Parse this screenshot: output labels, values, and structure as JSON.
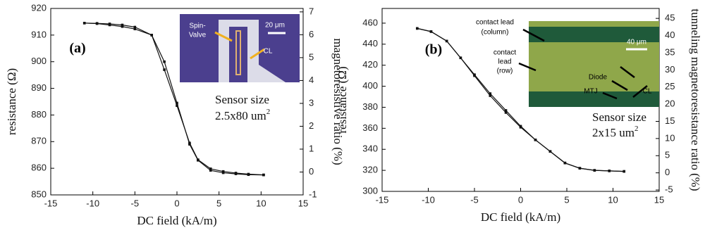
{
  "chart_data": [
    {
      "type": "line",
      "panel": "(a)",
      "xlabel": "DC field (kA/m)",
      "ylabel": "resistance (Ω)",
      "y2label": "magnetoresistive ratio (%)",
      "x": [
        -11,
        -9.5,
        -8,
        -6.5,
        -5,
        -3,
        -1.5,
        0,
        1.5,
        2.5,
        4,
        5.5,
        7,
        8.5,
        10.3
      ],
      "series": [
        {
          "color": "#111111",
          "values": [
            914.5,
            914.4,
            914.2,
            913.8,
            913.0,
            910.0,
            897.0,
            883.5,
            869.5,
            863.2,
            859.8,
            858.8,
            858.2,
            857.8,
            857.5
          ]
        },
        {
          "color": "#111111",
          "values": [
            914.5,
            914.3,
            913.8,
            913.2,
            912.3,
            910.0,
            900.0,
            884.5,
            869.0,
            863.0,
            859.2,
            858.3,
            857.9,
            857.6,
            857.5
          ]
        }
      ],
      "xlim": [
        -15,
        15
      ],
      "xticks": [
        -15,
        -10,
        -5,
        0,
        5,
        10,
        15
      ],
      "ylim": [
        850,
        920
      ],
      "yticks": [
        850,
        860,
        870,
        880,
        890,
        900,
        910,
        920
      ],
      "y2lim": [
        -1,
        7.15
      ],
      "y2ticks": [
        -1,
        0,
        1,
        2,
        3,
        4,
        5,
        6,
        7
      ],
      "inset_labels": [
        "Spin-",
        "Valve",
        "20 μm",
        "CL"
      ],
      "sensor_size": [
        "Sensor size",
        "2.5x80 um",
        "2"
      ]
    },
    {
      "type": "line",
      "panel": "(b)",
      "xlabel": "DC field (kA/m)",
      "ylabel": "resistance (Ω)",
      "y2label": "tunneling magnetoresistance ratio (%)",
      "x": [
        -11.2,
        -9.7,
        -8,
        -6.5,
        -5,
        -3.3,
        -1.6,
        0,
        1.6,
        3.2,
        4.8,
        6.4,
        8,
        9.6,
        11.2
      ],
      "series": [
        {
          "color": "#111111",
          "values": [
            455,
            452,
            443,
            427,
            411,
            393,
            377,
            362,
            349,
            338,
            327,
            322,
            320,
            319.5,
            319
          ]
        },
        {
          "color": "#111111",
          "values": [
            455,
            452,
            443,
            427,
            410,
            391,
            375,
            361,
            349,
            338,
            327,
            322,
            320,
            319.5,
            319
          ]
        }
      ],
      "xlim": [
        -15,
        15
      ],
      "xticks": [
        -15,
        -10,
        -5,
        0,
        5,
        10,
        15
      ],
      "ylim": [
        300,
        474
      ],
      "yticks": [
        300,
        320,
        340,
        360,
        380,
        400,
        420,
        440,
        460
      ],
      "y2lim": [
        -5.4,
        47.9
      ],
      "y2ticks": [
        -5,
        0,
        5,
        10,
        15,
        20,
        25,
        30,
        35,
        40,
        45
      ],
      "inset_labels": [
        "contact lead",
        "(column)",
        "contact",
        "lead",
        "(row)",
        "Diode",
        "MTJ",
        "CL",
        "40 μm"
      ],
      "sensor_size": [
        "Sensor size",
        "2x15 um",
        "2"
      ]
    }
  ]
}
